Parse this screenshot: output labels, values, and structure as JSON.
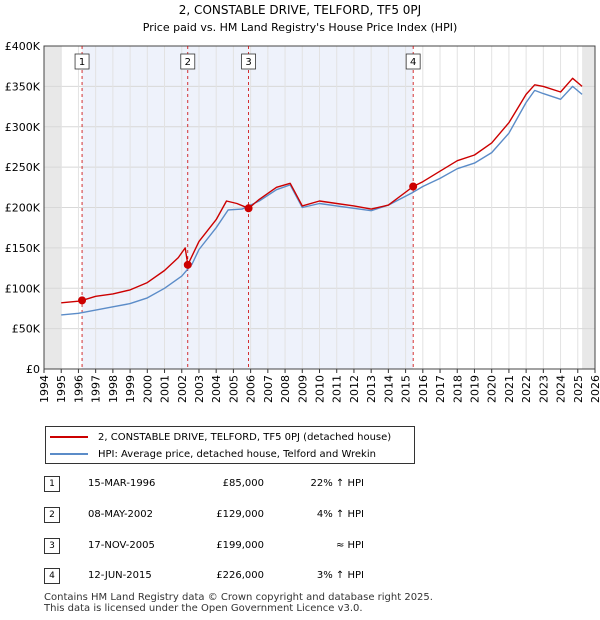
{
  "chart_data": {
    "type": "line",
    "title": "2, CONSTABLE DRIVE, TELFORD, TF5 0PJ",
    "subtitle": "Price paid vs. HM Land Registry's House Price Index (HPI)",
    "y_ticks": [
      "£0",
      "£50K",
      "£100K",
      "£150K",
      "£200K",
      "£250K",
      "£300K",
      "£350K",
      "£400K"
    ],
    "ylim": [
      0,
      400000
    ],
    "xlim": [
      1994,
      2026
    ],
    "x_ticks": [
      "1994",
      "1995",
      "1996",
      "1997",
      "1998",
      "1999",
      "2000",
      "2001",
      "2002",
      "2003",
      "2004",
      "2005",
      "2006",
      "2007",
      "2008",
      "2009",
      "2010",
      "2011",
      "2012",
      "2013",
      "2014",
      "2015",
      "2016",
      "2017",
      "2018",
      "2019",
      "2020",
      "2021",
      "2022",
      "2023",
      "2024",
      "2025",
      "2026"
    ],
    "data_start": 1995.0,
    "data_end": 2025.25,
    "series": [
      {
        "name": "2, CONSTABLE DRIVE, TELFORD, TF5 0PJ (detached house)",
        "color": "#cc0000",
        "points": [
          [
            1995.0,
            82000
          ],
          [
            1996.0,
            84000
          ],
          [
            1996.21,
            85000
          ],
          [
            1997.0,
            90000
          ],
          [
            1998.0,
            93000
          ],
          [
            1999.0,
            98000
          ],
          [
            2000.0,
            107000
          ],
          [
            2001.0,
            122000
          ],
          [
            2001.8,
            138000
          ],
          [
            2002.2,
            150000
          ],
          [
            2002.35,
            129000
          ],
          [
            2003.0,
            158000
          ],
          [
            2004.0,
            185000
          ],
          [
            2004.6,
            208000
          ],
          [
            2005.2,
            205000
          ],
          [
            2005.88,
            199000
          ],
          [
            2006.5,
            210000
          ],
          [
            2007.5,
            225000
          ],
          [
            2008.3,
            230000
          ],
          [
            2009.0,
            202000
          ],
          [
            2010.0,
            208000
          ],
          [
            2011.0,
            205000
          ],
          [
            2012.0,
            202000
          ],
          [
            2013.0,
            198000
          ],
          [
            2014.0,
            203000
          ],
          [
            2015.44,
            226000
          ],
          [
            2016.0,
            232000
          ],
          [
            2017.0,
            245000
          ],
          [
            2018.0,
            258000
          ],
          [
            2019.0,
            265000
          ],
          [
            2020.0,
            280000
          ],
          [
            2021.0,
            305000
          ],
          [
            2022.0,
            340000
          ],
          [
            2022.5,
            352000
          ],
          [
            2023.0,
            350000
          ],
          [
            2024.0,
            343000
          ],
          [
            2024.7,
            360000
          ],
          [
            2025.25,
            350000
          ]
        ]
      },
      {
        "name": "HPI: Average price, detached house, Telford and Wrekin",
        "color": "#5b8cc8",
        "points": [
          [
            1995.0,
            67000
          ],
          [
            1996.0,
            69000
          ],
          [
            1997.0,
            73000
          ],
          [
            1998.0,
            77000
          ],
          [
            1999.0,
            81000
          ],
          [
            2000.0,
            88000
          ],
          [
            2001.0,
            100000
          ],
          [
            2002.0,
            115000
          ],
          [
            2002.6,
            130000
          ],
          [
            2003.0,
            148000
          ],
          [
            2004.0,
            175000
          ],
          [
            2004.7,
            197000
          ],
          [
            2005.5,
            198000
          ],
          [
            2006.5,
            208000
          ],
          [
            2007.5,
            222000
          ],
          [
            2008.3,
            228000
          ],
          [
            2009.0,
            200000
          ],
          [
            2010.0,
            205000
          ],
          [
            2011.0,
            202000
          ],
          [
            2012.0,
            199000
          ],
          [
            2013.0,
            196000
          ],
          [
            2014.0,
            203000
          ],
          [
            2015.44,
            219000
          ],
          [
            2016.0,
            226000
          ],
          [
            2017.0,
            236000
          ],
          [
            2018.0,
            248000
          ],
          [
            2019.0,
            255000
          ],
          [
            2020.0,
            268000
          ],
          [
            2021.0,
            292000
          ],
          [
            2022.0,
            330000
          ],
          [
            2022.5,
            345000
          ],
          [
            2023.0,
            341000
          ],
          [
            2024.0,
            334000
          ],
          [
            2024.7,
            350000
          ],
          [
            2025.25,
            340000
          ]
        ]
      }
    ],
    "markers": [
      {
        "label": "1",
        "x": 1996.21,
        "y": 85000
      },
      {
        "label": "2",
        "x": 2002.35,
        "y": 129000
      },
      {
        "label": "3",
        "x": 2005.88,
        "y": 199000
      },
      {
        "label": "4",
        "x": 2015.44,
        "y": 226000
      }
    ]
  },
  "legend": [
    {
      "label": "2, CONSTABLE DRIVE, TELFORD, TF5 0PJ (detached house)",
      "color": "#cc0000"
    },
    {
      "label": "HPI: Average price, detached house, Telford and Wrekin",
      "color": "#5b8cc8"
    }
  ],
  "transactions": [
    {
      "num": "1",
      "date": "15-MAR-1996",
      "price": "£85,000",
      "hpi": "22% ↑ HPI"
    },
    {
      "num": "2",
      "date": "08-MAY-2002",
      "price": "£129,000",
      "hpi": "4% ↑ HPI"
    },
    {
      "num": "3",
      "date": "17-NOV-2005",
      "price": "£199,000",
      "hpi": "≈ HPI"
    },
    {
      "num": "4",
      "date": "12-JUN-2015",
      "price": "£226,000",
      "hpi": "3% ↑ HPI"
    }
  ],
  "footer": {
    "line1": "Contains HM Land Registry data © Crown copyright and database right 2025.",
    "line2": "This data is licensed under the Open Government Licence v3.0."
  }
}
